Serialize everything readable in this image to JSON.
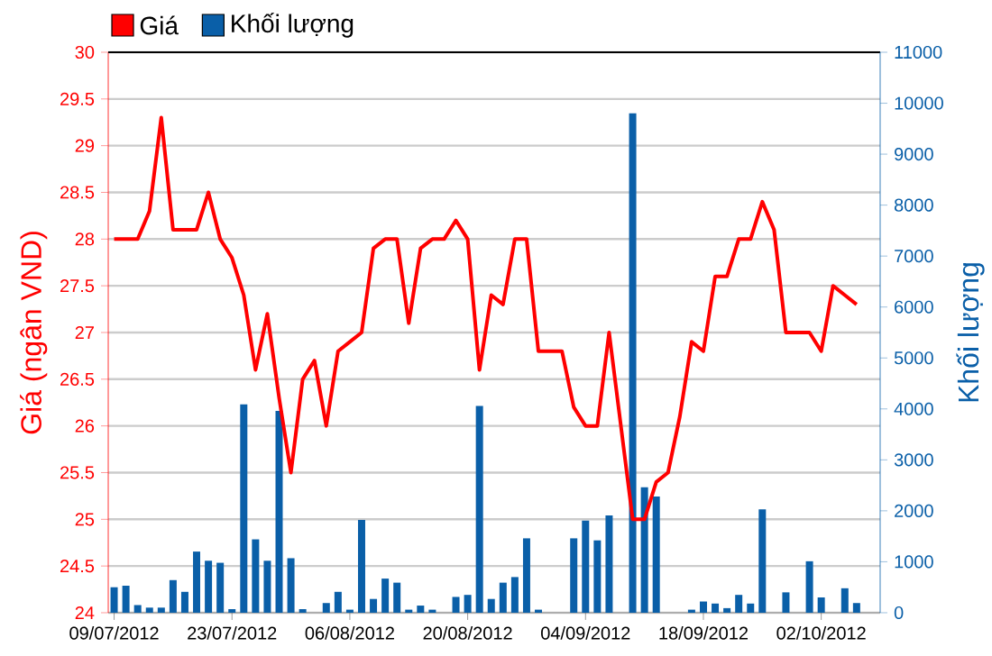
{
  "chart_data": {
    "type": "bar",
    "categories": [
      "09/07/2012",
      null,
      null,
      null,
      null,
      null,
      null,
      null,
      null,
      null,
      "23/07/2012",
      null,
      null,
      null,
      null,
      null,
      null,
      null,
      null,
      null,
      "06/08/2012",
      null,
      null,
      null,
      null,
      null,
      null,
      null,
      null,
      null,
      "20/08/2012",
      null,
      null,
      null,
      null,
      null,
      null,
      null,
      null,
      null,
      "04/09/2012",
      null,
      null,
      null,
      null,
      null,
      null,
      null,
      null,
      null,
      "18/09/2012",
      null,
      null,
      null,
      null,
      null,
      null,
      null,
      null,
      null,
      "02/10/2012",
      null,
      null,
      null
    ],
    "series": [
      {
        "name": "Giá",
        "type": "line",
        "axis": "y",
        "color": "#ff0000",
        "values": [
          28.0,
          28.0,
          28.0,
          28.3,
          29.3,
          28.1,
          28.1,
          28.1,
          28.5,
          28.0,
          27.8,
          27.4,
          26.6,
          27.2,
          26.3,
          25.5,
          26.5,
          26.7,
          26.0,
          26.8,
          26.9,
          27.0,
          27.9,
          28.0,
          28.0,
          27.1,
          27.9,
          28.0,
          28.0,
          28.2,
          28.0,
          26.6,
          27.4,
          27.3,
          28.0,
          28.0,
          26.8,
          26.8,
          26.8,
          26.2,
          26.0,
          26.0,
          27.0,
          26.0,
          25.0,
          25.0,
          25.4,
          25.5,
          26.1,
          26.9,
          26.8,
          27.6,
          27.6,
          28.0,
          28.0,
          28.4,
          28.1,
          27.0,
          27.0,
          27.0,
          26.8,
          27.5,
          27.4,
          27.3
        ]
      },
      {
        "name": "Khối lượng",
        "axis": "y2",
        "color": "#0a5fa8",
        "values": [
          500,
          530,
          150,
          100,
          100,
          640,
          410,
          1200,
          1020,
          980,
          70,
          4090,
          1440,
          1020,
          3960,
          1070,
          70,
          0,
          190,
          410,
          60,
          1820,
          270,
          670,
          590,
          60,
          140,
          60,
          0,
          310,
          350,
          4060,
          270,
          590,
          700,
          1460,
          60,
          0,
          0,
          1460,
          1810,
          1420,
          1910,
          0,
          9800,
          2460,
          2280,
          0,
          0,
          60,
          220,
          180,
          90,
          350,
          180,
          2030,
          0,
          400,
          0,
          1010,
          300,
          0,
          480,
          190
        ]
      }
    ],
    "ylabel": "Giá (ngân VND)",
    "y2label": "Khối lượng",
    "ylim": [
      24,
      30
    ],
    "yticks": [
      24,
      24.5,
      25,
      25.5,
      26,
      26.5,
      27,
      27.5,
      28,
      28.5,
      29,
      29.5,
      30
    ],
    "y2lim": [
      0,
      11000
    ],
    "y2ticks": [
      0,
      1000,
      2000,
      3000,
      4000,
      5000,
      6000,
      7000,
      8000,
      9000,
      10000,
      11000
    ],
    "grid": "y",
    "legend": "top left"
  }
}
